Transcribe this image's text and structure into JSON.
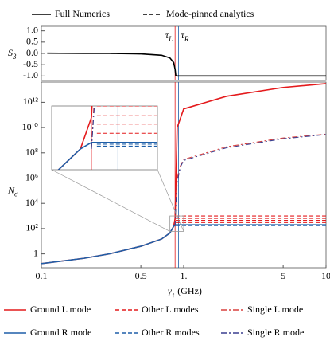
{
  "chart_data": [
    {
      "type": "line",
      "xlog": true,
      "xlim": [
        0.1,
        10
      ],
      "ylim": [
        -1.2,
        1.2
      ],
      "ylabel": {
        "text": "S",
        "sub": "3"
      },
      "yticks": [
        {
          "value": 1,
          "label": "1.0"
        },
        0.5,
        {
          "value": 0,
          "label": "0.0"
        },
        -0.5,
        {
          "value": -1,
          "label": "-1.0"
        }
      ],
      "x": [
        0.11,
        0.2,
        0.3,
        0.5,
        0.7,
        0.8,
        0.85,
        0.87,
        0.88,
        0.9,
        1,
        2,
        5,
        10
      ],
      "series": [
        {
          "name": "Full Numerics",
          "color": "#000000",
          "dash": "solid",
          "values": [
            0.01,
            0.0,
            0.0,
            -0.02,
            -0.08,
            -0.2,
            -0.4,
            -0.7,
            -0.98,
            -1,
            -1,
            -1,
            -1,
            -1
          ]
        },
        {
          "name": "Mode-pinned analytics",
          "color": "#000000",
          "dash": "dashed",
          "values": [
            0.01,
            0.0,
            0.0,
            -0.02,
            -0.08,
            -0.2,
            -0.42,
            -0.72,
            -0.98,
            -1,
            -1,
            -1,
            -1,
            -1
          ]
        }
      ],
      "legend": "top",
      "markers": [
        {
          "label": "τ",
          "sub": "L",
          "value": 0.87,
          "color": "#e41a1c"
        },
        {
          "label": "τ",
          "sub": "R",
          "value": 0.92,
          "color": "#1f5fa8"
        }
      ]
    },
    {
      "type": "line",
      "xlog": true,
      "ylog": true,
      "xlim": [
        0.1,
        10
      ],
      "ylim": [
        0.08,
        40000000000000.0
      ],
      "xlabel": {
        "text": "γ",
        "sub": "↑",
        "after": " (GHz)"
      },
      "ylabel": {
        "text": "N",
        "sub": "σ"
      },
      "xticks": [
        0.1,
        0.5,
        {
          "value": 1,
          "label": "1."
        },
        5,
        10
      ],
      "yticks": [
        1,
        {
          "value": 100,
          "label": "10²"
        },
        {
          "value": 10000,
          "label": "10⁴"
        },
        {
          "value": 1000000,
          "label": "10⁶"
        },
        {
          "value": 100000000,
          "label": "10⁸"
        },
        {
          "value": 10000000000,
          "label": "10¹⁰"
        },
        {
          "value": 1000000000000,
          "label": "10¹²"
        }
      ],
      "x": [
        0.1,
        0.2,
        0.3,
        0.5,
        0.7,
        0.8,
        0.85,
        0.87,
        0.88,
        0.9,
        1,
        2,
        5,
        10
      ],
      "series": [
        {
          "name": "Ground L mode",
          "color": "#e41a1c",
          "dash": "solid",
          "values": [
            0.17,
            0.45,
            1,
            4,
            15,
            45,
            150,
            600,
            100000,
            10000000000,
            300000000000,
            3000000000000,
            15000000000000,
            30000000000000
          ]
        },
        {
          "name": "Other L modes",
          "color": "#e41a1c",
          "dash": "dashed",
          "x": [
            0.88,
            0.9,
            1,
            2,
            5,
            10
          ],
          "values": [
            [
              300,
              300,
              300,
              300,
              300,
              300
            ],
            [
              450,
              450,
              450,
              450,
              450,
              450
            ],
            [
              650,
              650,
              650,
              650,
              650,
              650
            ],
            [
              1000,
              1000,
              1000,
              1000,
              1000,
              1000
            ]
          ]
        },
        {
          "name": "Single L mode",
          "color": "#d9413f",
          "dash": "dashdot",
          "x": [
            0.87,
            0.88,
            0.9,
            0.95,
            1,
            2,
            5,
            10
          ],
          "values": [
            150,
            10000,
            1000000,
            10000000,
            30000000,
            300000000,
            1500000000,
            3000000000
          ]
        },
        {
          "name": "Ground R mode",
          "color": "#1f5fa8",
          "dash": "solid",
          "values": [
            0.17,
            0.45,
            1,
            4,
            15,
            45,
            150,
            200,
            200,
            200,
            200,
            200,
            200,
            200
          ]
        },
        {
          "name": "Other R modes",
          "color": "#1f5fa8",
          "dash": "dashed",
          "x": [
            0.88,
            0.9,
            1,
            2,
            5,
            10
          ],
          "values": [
            [
              170,
              170,
              170,
              170,
              170,
              170
            ],
            [
              185,
              185,
              185,
              185,
              185,
              185
            ]
          ]
        },
        {
          "name": "Single R mode",
          "color": "#3a3f8f",
          "dash": "dashdot",
          "x": [
            0.87,
            0.88,
            0.9,
            0.95,
            1,
            2,
            5,
            10
          ],
          "values": [
            150,
            5000,
            500000,
            8000000,
            25000000,
            250000000,
            1300000000,
            2800000000
          ]
        }
      ],
      "legend": "bottom",
      "inset": {
        "xlim": [
          0.8,
          1.0
        ],
        "ylim": [
          60,
          1000
        ]
      }
    }
  ]
}
